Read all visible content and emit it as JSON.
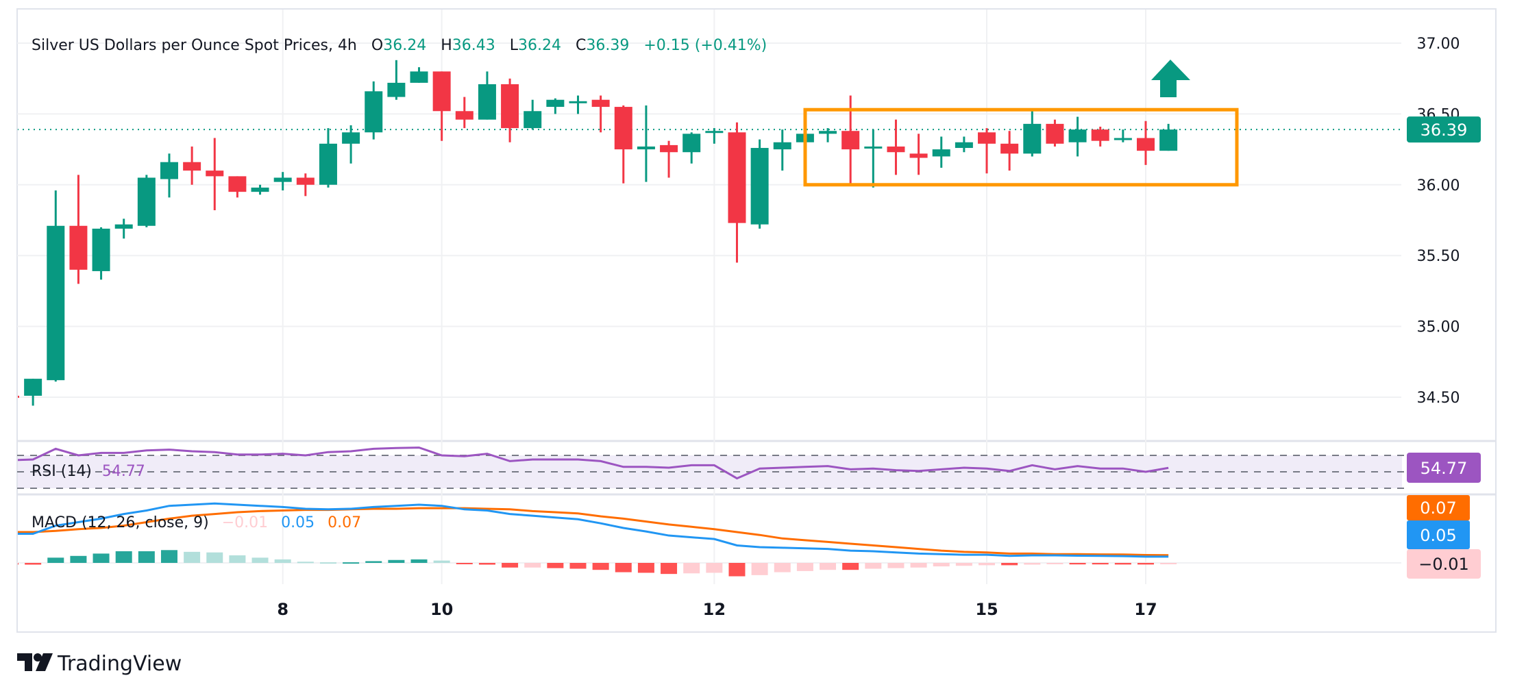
{
  "header": {
    "title": "Silver US Dollars per Ounce Spot Prices, 4h",
    "open_label": "O",
    "open": "36.24",
    "high_label": "H",
    "high": "36.43",
    "low_label": "L",
    "low": "36.24",
    "close_label": "C",
    "close": "36.39",
    "change": "+0.15 (+0.41%)"
  },
  "price_axis": {
    "ticks": [
      "37.00",
      "36.50",
      "36.00",
      "35.50",
      "35.00",
      "34.50"
    ],
    "current_price_tag": "36.39"
  },
  "rsi": {
    "label": "RSI (14)",
    "value": "54.77",
    "tag": "54.77"
  },
  "macd": {
    "label": "MACD (12, 26, close, 9)",
    "hist_value": "−0.01",
    "macd_value": "0.05",
    "signal_value": "0.07",
    "tag_signal": "0.07",
    "tag_macd": "0.05",
    "tag_hist": "−0.01"
  },
  "time_axis": {
    "ticks": [
      "8",
      "10",
      "12",
      "15",
      "17"
    ]
  },
  "branding": {
    "logo_text": "TradingView"
  },
  "colors": {
    "up": "#089981",
    "down": "#F23645",
    "rsi": "#9C55C1",
    "rsi_band": "#F0ECF8",
    "macd": "#2196F3",
    "signal": "#FF6D00",
    "hist_up_grow": "#26A69A",
    "hist_up_fall": "#B2DFDB",
    "hist_down_grow": "#FF5252",
    "hist_down_fall": "#FFCDD2",
    "box": "#FF9800",
    "grid": "#F0F1F3"
  },
  "chart_data": {
    "type": "candlestick",
    "title": "Silver US Dollars per Ounce Spot Prices, 4h",
    "ylim": [
      34.3,
      37.25
    ],
    "y_ticks": [
      34.5,
      35.0,
      35.5,
      36.0,
      36.5,
      37.0
    ],
    "x_tick_labels": [
      "8",
      "10",
      "12",
      "15",
      "17"
    ],
    "grid": true,
    "candles": {
      "open": [
        34.51,
        34.51,
        34.62,
        35.71,
        35.39,
        35.69,
        35.71,
        36.04,
        36.16,
        36.1,
        36.06,
        35.95,
        36.02,
        36.05,
        36.0,
        36.29,
        36.37,
        36.62,
        36.72,
        36.8,
        36.52,
        36.46,
        36.71,
        36.4,
        36.55,
        36.58,
        36.6,
        36.55,
        36.25,
        36.28,
        36.23,
        36.37,
        36.37,
        35.72,
        36.25,
        36.3,
        36.36,
        36.38,
        36.26,
        36.27,
        36.22,
        36.2,
        36.26,
        36.37,
        36.29,
        36.22,
        36.43,
        36.3,
        36.39,
        36.32,
        36.33,
        36.24
      ],
      "high": [
        34.52,
        34.63,
        35.96,
        36.07,
        35.7,
        35.76,
        36.07,
        36.22,
        36.27,
        36.33,
        36.06,
        36.0,
        36.09,
        36.08,
        36.4,
        36.42,
        36.73,
        36.88,
        36.83,
        36.8,
        36.62,
        36.8,
        36.75,
        36.6,
        36.61,
        36.63,
        36.63,
        36.56,
        36.56,
        36.31,
        36.37,
        36.4,
        36.44,
        36.32,
        36.39,
        36.4,
        36.4,
        36.63,
        36.39,
        36.46,
        36.36,
        36.34,
        36.34,
        36.4,
        36.38,
        36.52,
        36.46,
        36.48,
        36.41,
        36.39,
        36.45,
        36.43
      ],
      "low": [
        34.49,
        34.44,
        34.61,
        35.3,
        35.33,
        35.62,
        35.7,
        35.91,
        36.0,
        35.82,
        35.91,
        35.93,
        35.96,
        35.92,
        35.98,
        36.15,
        36.32,
        36.6,
        36.72,
        36.31,
        36.4,
        36.46,
        36.3,
        36.39,
        36.5,
        36.5,
        36.37,
        36.01,
        36.02,
        36.05,
        36.15,
        36.29,
        35.45,
        35.69,
        36.1,
        36.2,
        36.3,
        35.99,
        35.98,
        36.07,
        36.07,
        36.12,
        36.23,
        36.08,
        36.1,
        36.2,
        36.27,
        36.2,
        36.27,
        36.3,
        36.14,
        36.24
      ],
      "close": [
        34.5,
        34.63,
        35.71,
        35.4,
        35.69,
        35.72,
        36.05,
        36.16,
        36.1,
        36.06,
        35.95,
        35.98,
        36.05,
        36.0,
        36.29,
        36.37,
        36.66,
        36.72,
        36.8,
        36.52,
        36.46,
        36.71,
        36.4,
        36.52,
        36.6,
        36.59,
        36.55,
        36.25,
        36.27,
        36.23,
        36.36,
        36.38,
        35.73,
        36.26,
        36.3,
        36.36,
        36.38,
        36.25,
        36.27,
        36.23,
        36.19,
        36.25,
        36.3,
        36.29,
        36.22,
        36.43,
        36.29,
        36.39,
        36.31,
        36.33,
        36.24,
        36.39
      ]
    },
    "last_price": 36.39,
    "annotations": [
      {
        "type": "rectangle",
        "price_top": 36.53,
        "price_bottom": 36.0,
        "color": "#FF9800"
      },
      {
        "type": "arrow-up",
        "color": "#089981"
      }
    ],
    "indicators": {
      "rsi": {
        "name": "RSI (14)",
        "levels": [
          70,
          50,
          30
        ],
        "values": [
          64,
          65,
          78,
          70,
          73,
          73,
          76,
          77,
          75,
          74,
          71,
          71,
          72,
          70,
          74,
          75,
          78,
          79,
          79.5,
          70,
          69,
          72,
          63,
          65,
          65,
          65,
          63,
          56,
          56,
          55,
          58,
          58,
          42,
          54,
          55,
          56,
          57,
          53,
          54,
          52,
          51,
          53,
          55,
          54,
          51,
          58,
          53,
          57,
          54,
          54,
          50,
          54.77
        ]
      },
      "macd": {
        "name": "MACD (12, 26, close, 9)",
        "macd": [
          0.25,
          0.25,
          0.32,
          0.35,
          0.38,
          0.42,
          0.45,
          0.49,
          0.5,
          0.51,
          0.5,
          0.49,
          0.48,
          0.465,
          0.46,
          0.465,
          0.48,
          0.49,
          0.5,
          0.49,
          0.46,
          0.45,
          0.42,
          0.405,
          0.39,
          0.375,
          0.34,
          0.3,
          0.27,
          0.235,
          0.22,
          0.205,
          0.15,
          0.135,
          0.13,
          0.125,
          0.12,
          0.105,
          0.1,
          0.09,
          0.08,
          0.075,
          0.07,
          0.07,
          0.06,
          0.065,
          0.065,
          0.062,
          0.06,
          0.058,
          0.054,
          0.054
        ],
        "signal": [
          0.265,
          0.265,
          0.275,
          0.29,
          0.3,
          0.32,
          0.35,
          0.38,
          0.405,
          0.42,
          0.435,
          0.445,
          0.45,
          0.455,
          0.455,
          0.46,
          0.465,
          0.465,
          0.47,
          0.47,
          0.47,
          0.465,
          0.46,
          0.445,
          0.435,
          0.425,
          0.4,
          0.38,
          0.355,
          0.33,
          0.31,
          0.29,
          0.265,
          0.24,
          0.21,
          0.195,
          0.18,
          0.165,
          0.15,
          0.135,
          0.12,
          0.105,
          0.095,
          0.09,
          0.08,
          0.08,
          0.075,
          0.075,
          0.073,
          0.072,
          0.068,
          0.066
        ]
      }
    }
  }
}
